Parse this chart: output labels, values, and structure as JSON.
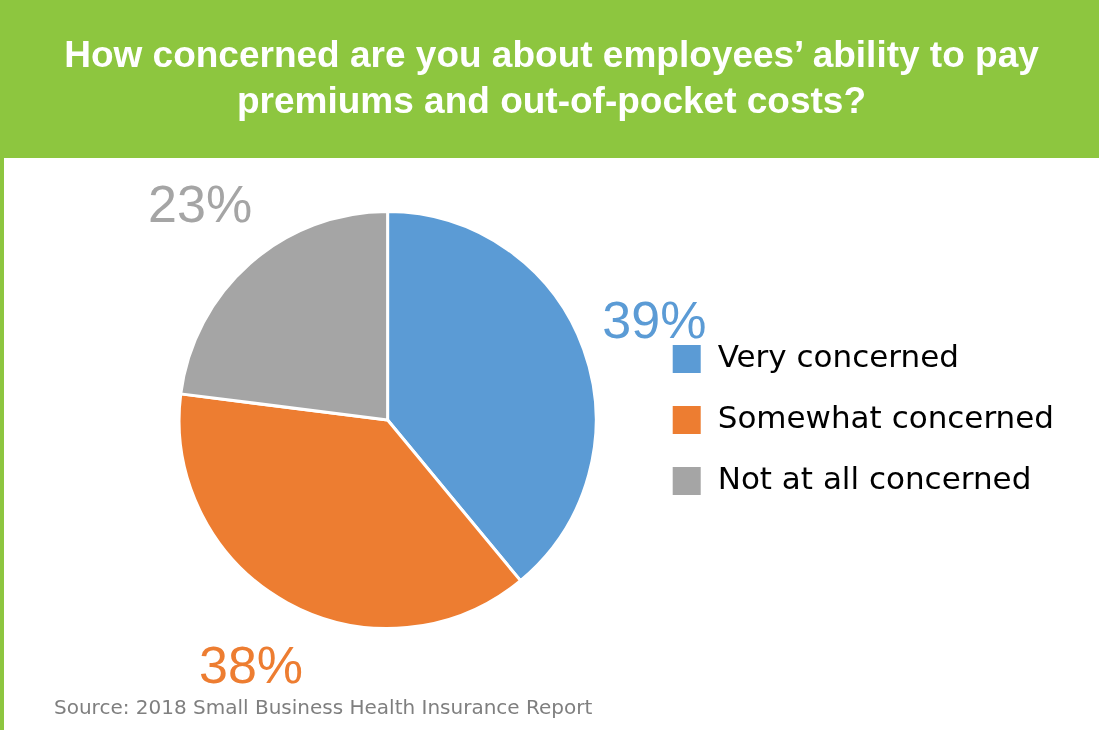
{
  "chart_data": {
    "type": "pie",
    "title": "How concerned are you about employees’ ability to pay premiums and out-of-pocket costs?",
    "categories": [
      "Very concerned",
      "Somewhat concerned",
      "Not at all concerned"
    ],
    "values": [
      39,
      38,
      23
    ],
    "colors": [
      "#5b9bd5",
      "#ed7d31",
      "#a5a5a5"
    ],
    "value_labels": [
      "39%",
      "38%",
      "23%"
    ],
    "legend": "right",
    "annotations": [
      "Source: 2018 Small Business Health Insurance Report"
    ]
  }
}
